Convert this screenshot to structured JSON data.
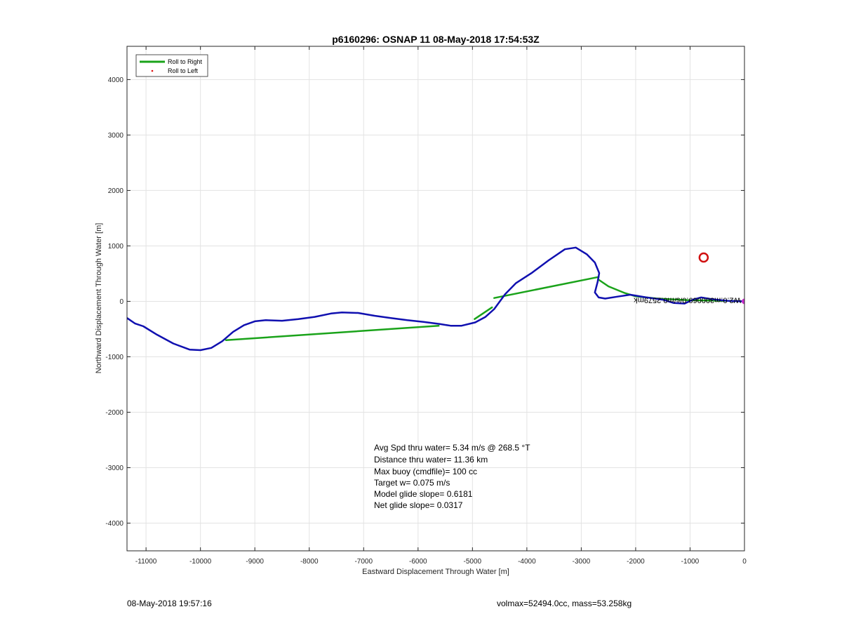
{
  "chart_data": {
    "type": "line",
    "title": "p6160296: OSNAP 11 08-May-2018 17:54:53Z",
    "xlabel": "Eastward Displacement Through Water [m]",
    "ylabel": "Northward Displacement Through Water [m]",
    "xlim": [
      -11350,
      0
    ],
    "ylim": [
      -4500,
      4600
    ],
    "grid": true,
    "xticks": [
      -11000,
      -10000,
      -9000,
      -8000,
      -7000,
      -6000,
      -5000,
      -4000,
      -3000,
      -2000,
      -1000,
      0
    ],
    "yticks": [
      -4000,
      -3000,
      -2000,
      -1000,
      0,
      1000,
      2000,
      3000,
      4000
    ],
    "legend": {
      "placement": "top-left",
      "entries": [
        {
          "label": "Roll to Right",
          "color": "#1aa31a",
          "style": "line"
        },
        {
          "label": "Roll to Left",
          "color": "#e01010",
          "style": "dot"
        }
      ]
    },
    "series": [
      {
        "name": "Roll to Right",
        "color": "#1aa31a",
        "segments": [
          {
            "x": [
              -9530,
              -5620
            ],
            "y": [
              -700,
              -440
            ]
          },
          {
            "x": [
              -4960,
              -4640
            ],
            "y": [
              -320,
              -110
            ]
          },
          {
            "x": [
              -4600,
              -2680
            ],
            "y": [
              60,
              440
            ]
          },
          {
            "x": [
              -2680,
              -2500,
              -2200,
              -2000,
              -1600,
              -1000,
              -300,
              0
            ],
            "y": [
              390,
              270,
              150,
              90,
              50,
              20,
              10,
              0
            ]
          }
        ]
      },
      {
        "color": "#1010b0",
        "x": [
          -11350,
          -11200,
          -11050,
          -10800,
          -10500,
          -10200,
          -10000,
          -9800,
          -9600,
          -9400,
          -9200,
          -9000,
          -8800,
          -8500,
          -8200,
          -7900,
          -7600,
          -7400,
          -7100,
          -6800,
          -6500,
          -6200,
          -5900,
          -5600,
          -5400,
          -5200,
          -4950,
          -4760,
          -4600,
          -4400,
          -4200,
          -3900,
          -3600,
          -3300,
          -3100,
          -2900,
          -2750,
          -2670,
          -2700,
          -2750,
          -2680,
          -2560,
          -2300,
          -2100,
          -1800,
          -1500,
          -1300,
          -1100,
          -950,
          -800,
          -600,
          -300,
          0
        ],
        "y": [
          -300,
          -400,
          -450,
          -600,
          -760,
          -870,
          -880,
          -840,
          -720,
          -550,
          -430,
          -360,
          -340,
          -350,
          -320,
          -280,
          -220,
          -200,
          -210,
          -260,
          -300,
          -340,
          -370,
          -410,
          -440,
          -440,
          -380,
          -280,
          -140,
          130,
          330,
          520,
          740,
          940,
          970,
          850,
          700,
          510,
          350,
          160,
          70,
          50,
          90,
          120,
          70,
          30,
          -30,
          -40,
          30,
          70,
          40,
          10,
          0
        ]
      }
    ],
    "annotations": {
      "red_circle": {
        "x": -750,
        "y": 790,
        "color": "#d01010"
      },
      "end_marker": {
        "x": 0,
        "y": 0,
        "color": "#cc2ecc"
      },
      "upside_down_label": "W2.0:m300069.0/s/m0.2579mk",
      "upside_down_x": -1050,
      "upside_down_y": 60
    },
    "stats": {
      "avg_speed": "Avg Spd thru water=  5.34 m/s @ 268.5 °T",
      "distance": "Distance thru water= 11.36 km",
      "max_buoy": "Max buoy (cmdfile)= 100 cc",
      "target_w": "Target w= 0.075 m/s",
      "model_glide": "Model glide slope= 0.6181",
      "net_glide": "Net glide slope= 0.0317"
    },
    "footer": {
      "date": "08-May-2018 19:57:16",
      "mass": "volmax=52494.0cc, mass=53.258kg"
    }
  }
}
